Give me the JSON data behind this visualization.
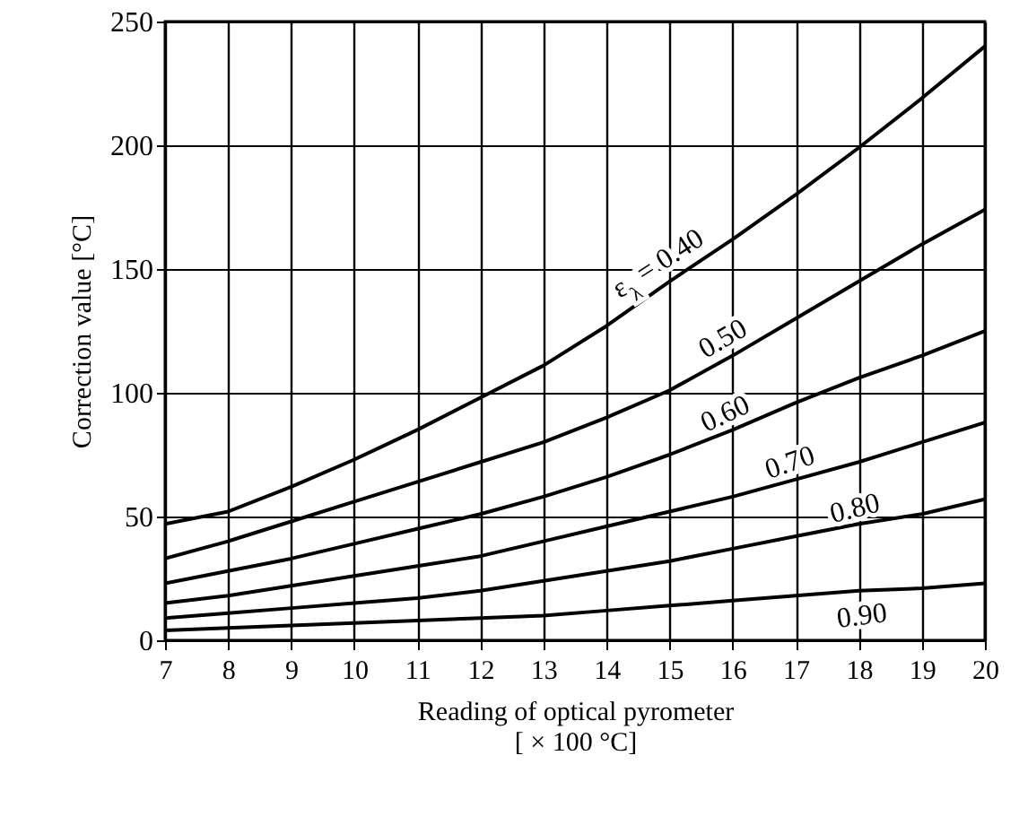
{
  "chart_data": {
    "type": "line",
    "xlabel": "Reading of optical pyrometer\n[ × 100 °C]",
    "ylabel": "Correction value [°C]",
    "x": [
      7,
      8,
      9,
      10,
      11,
      12,
      13,
      14,
      15,
      16,
      17,
      18,
      19,
      20
    ],
    "xlim": [
      7,
      20
    ],
    "xticks": [
      7,
      8,
      9,
      10,
      11,
      12,
      13,
      14,
      15,
      16,
      17,
      18,
      19,
      20
    ],
    "ylim": [
      0,
      250
    ],
    "yticks": [
      0,
      50,
      100,
      150,
      200,
      250
    ],
    "grid": true,
    "marker": "none",
    "line_style": "solid",
    "series": [
      {
        "name": "ε$_{λ}$ = 0.40",
        "color": "#000000",
        "values": [
          47,
          52,
          62,
          73,
          85,
          98,
          111,
          127,
          145,
          162,
          180,
          199,
          219,
          240
        ]
      },
      {
        "name": "0.50",
        "color": "#000000",
        "values": [
          33,
          40,
          48,
          56,
          64,
          72,
          80,
          90,
          101,
          115,
          130,
          145,
          160,
          174
        ]
      },
      {
        "name": "0.60",
        "color": "#000000",
        "values": [
          23,
          28,
          33,
          39,
          45,
          51,
          58,
          66,
          75,
          85,
          96,
          106,
          115,
          125
        ]
      },
      {
        "name": "0.70",
        "color": "#000000",
        "values": [
          15,
          18,
          22,
          26,
          30,
          34,
          40,
          46,
          52,
          58,
          65,
          72,
          80,
          88
        ]
      },
      {
        "name": "0.80",
        "color": "#000000",
        "values": [
          9,
          11,
          13,
          15,
          17,
          20,
          24,
          28,
          32,
          37,
          42,
          47,
          51,
          57
        ]
      },
      {
        "name": "0.90",
        "color": "#000000",
        "values": [
          4,
          5,
          6,
          7,
          8,
          9,
          10,
          12,
          14,
          16,
          18,
          20,
          21,
          23
        ]
      }
    ]
  }
}
